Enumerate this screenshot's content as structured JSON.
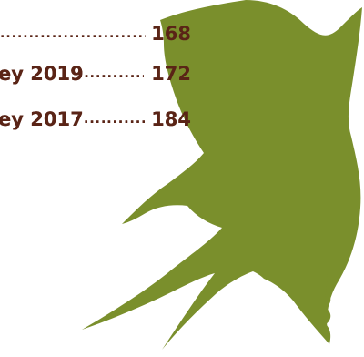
{
  "toc": [
    {
      "text_fragment": "",
      "page": "168"
    },
    {
      "text_fragment": "ey 2019",
      "page": "172"
    },
    {
      "text_fragment": "ey 2017",
      "page": "184"
    }
  ],
  "colors": {
    "bird_green": "#7a8f2c",
    "text_brown": "#5a2416"
  },
  "icons": [
    "swallow-illustration"
  ]
}
